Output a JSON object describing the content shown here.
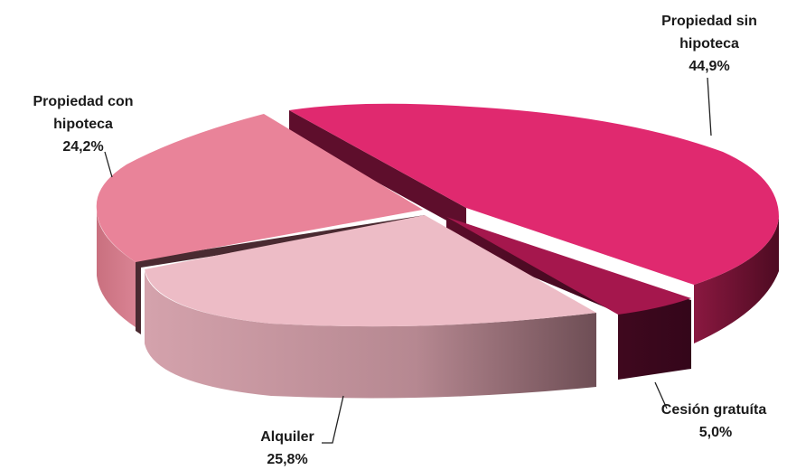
{
  "chart_data": {
    "type": "pie",
    "style": "3d-exploded",
    "slices": [
      {
        "label_lines": [
          "Propiedad sin",
          "hipoteca"
        ],
        "value_label": "44,9%",
        "value": 44.9,
        "color": "#e0296f"
      },
      {
        "label_lines": [
          "Cesión gratuíta"
        ],
        "value_label": "5,0%",
        "value": 5.0,
        "color": "#a5174d"
      },
      {
        "label_lines": [
          "Alquiler"
        ],
        "value_label": "25,8%",
        "value": 25.8,
        "color": "#edbcc6"
      },
      {
        "label_lines": [
          "Propiedad con",
          "hipoteca"
        ],
        "value_label": "24,2%",
        "value": 24.2,
        "color": "#e98399"
      }
    ]
  }
}
